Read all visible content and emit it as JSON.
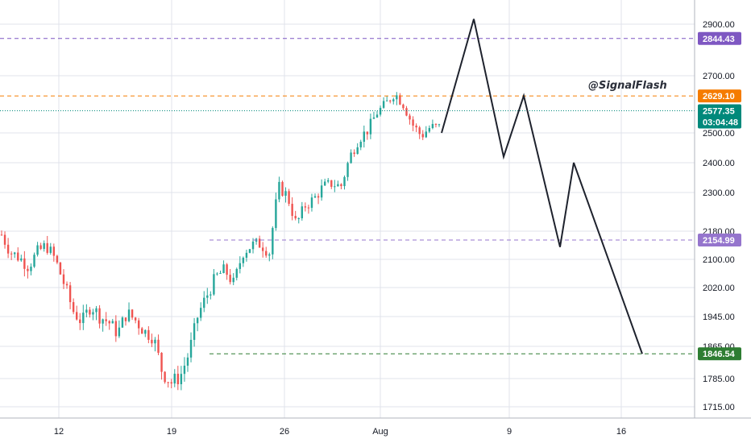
{
  "chart_data": {
    "type": "candlestick",
    "watermark": "@SignalFlash",
    "y_ticks": [
      1715.0,
      1785.0,
      1865.0,
      1945.0,
      2020.0,
      2100.0,
      2180.0,
      2300.0,
      2400.0,
      2500.0,
      2700.0,
      2900.0
    ],
    "y_tick_labels": [
      "1715.00",
      "1785.00",
      "1865.00",
      "1945.00",
      "2020.00",
      "2100.00",
      "2180.00",
      "2300.00",
      "2400.00",
      "2500.00",
      "2700.00",
      "2900.00"
    ],
    "x_tick_labels": [
      "12",
      "19",
      "26",
      "Aug",
      "9",
      "16"
    ],
    "price_levels": [
      {
        "value": 2844.43,
        "label": "2844.43",
        "color": "#7e57c2",
        "style": "dashed"
      },
      {
        "value": 2629.1,
        "label": "2629.10",
        "color": "#f57c00",
        "style": "dashed"
      },
      {
        "value": 2577.35,
        "label": "2577.35",
        "sublabel": "03:04:48",
        "color": "#00897b",
        "style": "dotted"
      },
      {
        "value": 2154.99,
        "label": "2154.99",
        "color": "#9575cd",
        "style": "dashed"
      },
      {
        "value": 1846.54,
        "label": "1846.54",
        "color": "#2e7d32",
        "style": "dashed"
      }
    ],
    "colors": {
      "up": "#26a69a",
      "down": "#ef5350",
      "grid": "#e0e3eb",
      "axis": "#131722",
      "projection": "#1e222d"
    },
    "candle_anchors": [
      2170,
      2120,
      2105,
      2080,
      2120,
      2140,
      2100,
      2030,
      1960,
      1930,
      1975,
      1945,
      1930,
      1900,
      1955,
      1935,
      1905,
      1890,
      1800,
      1775,
      1790,
      1850,
      1950,
      2000,
      2050,
      2070,
      2030,
      2120,
      2140,
      2145,
      2120,
      2320,
      2290,
      2200,
      2260,
      2280,
      2320,
      2330,
      2320,
      2420,
      2480,
      2510,
      2570,
      2600,
      2640,
      2600,
      2530,
      2490,
      2520,
      2520
    ],
    "projection_path": [
      2500,
      2920,
      2420,
      2630,
      2135,
      2400,
      1846.54
    ]
  }
}
